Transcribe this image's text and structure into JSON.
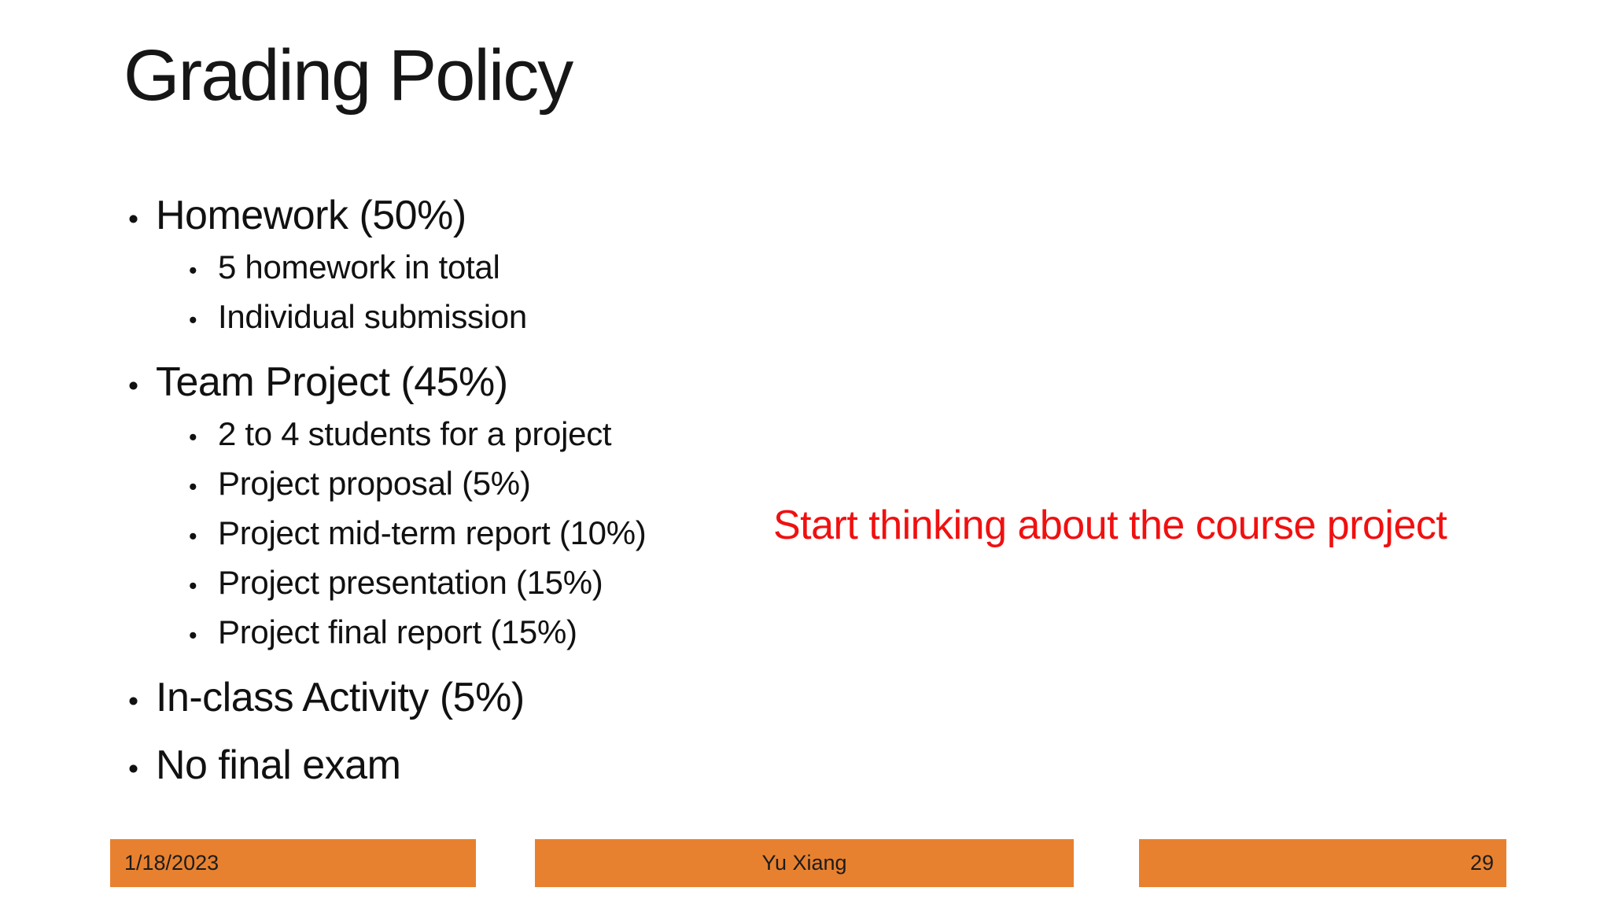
{
  "slide": {
    "title": "Grading Policy",
    "content": {
      "bullet_char": "•",
      "bullets": [
        {
          "level": 1,
          "text": "Homework (50%)"
        },
        {
          "level": 2,
          "text": "5 homework in total"
        },
        {
          "level": 2,
          "text": "Individual submission"
        },
        {
          "level": 1,
          "text": "Team Project (45%)"
        },
        {
          "level": 2,
          "text": "2 to 4 students for a project"
        },
        {
          "level": 2,
          "text": "Project proposal (5%)"
        },
        {
          "level": 2,
          "text": "Project mid-term report (10%)"
        },
        {
          "level": 2,
          "text": "Project presentation (15%)"
        },
        {
          "level": 2,
          "text": "Project final report (15%)"
        },
        {
          "level": 1,
          "text": "In-class Activity (5%)"
        },
        {
          "level": 1,
          "text": "No final exam"
        }
      ]
    },
    "callout": {
      "text": "Start thinking about the course project",
      "color": "#F01010"
    },
    "footer": {
      "date": "1/18/2023",
      "author": "Yu Xiang",
      "slide_number": "29",
      "bar_color": "#E8812F"
    },
    "colors": {
      "background": "#FFFFFF",
      "text": "#111111"
    }
  }
}
